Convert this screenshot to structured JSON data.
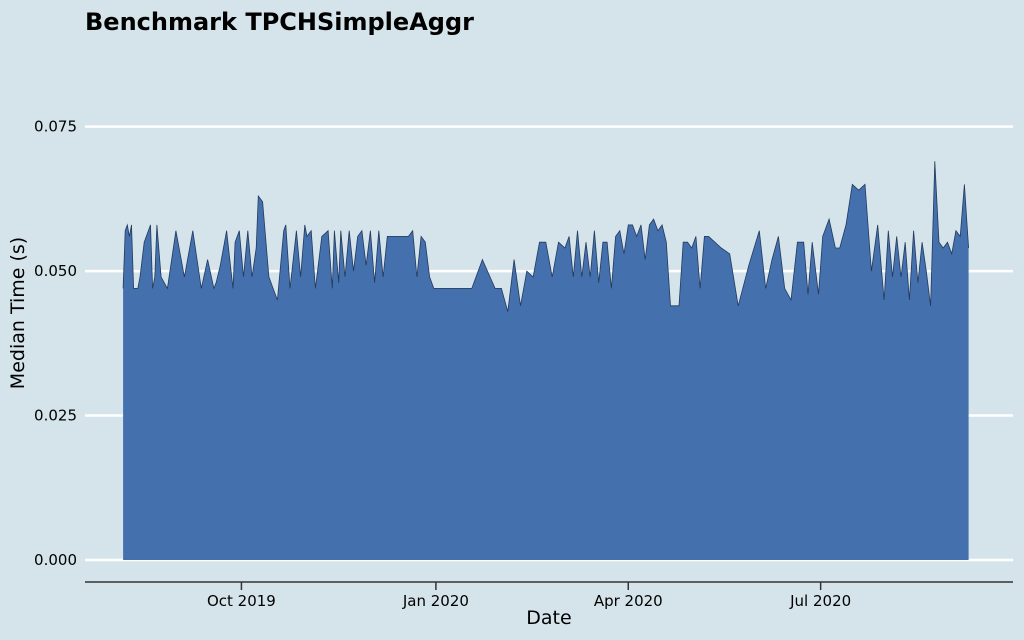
{
  "chart_data": {
    "type": "area",
    "title": "Benchmark TPCHSimpleAggr",
    "xlabel": "Date",
    "ylabel": "Median Time (s)",
    "xlim": [
      "2019-07-19",
      "2020-09-30"
    ],
    "ylim": [
      0,
      0.09
    ],
    "yticks": [
      0.0,
      0.025,
      0.05,
      0.075
    ],
    "ytick_labels": [
      "0.000",
      "0.025",
      "0.050",
      "0.075"
    ],
    "xticks": [
      "2019-10-01",
      "2020-01-01",
      "2020-04-01",
      "2020-07-01"
    ],
    "xtick_labels": [
      "Oct 2019",
      "Jan 2020",
      "Apr 2020",
      "Jul 2020"
    ],
    "grid": "horizontal",
    "legend": "none",
    "colors": {
      "background": "#d5e4eb",
      "fill": "#4470ad",
      "line": "#243a5c",
      "grid": "#ffffff",
      "axis": "#333333"
    },
    "series": [
      {
        "x": [
          "2019-08-06",
          "2019-08-07",
          "2019-08-08",
          "2019-08-09",
          "2019-08-10",
          "2019-08-11",
          "2019-08-12",
          "2019-08-13",
          "2019-08-14",
          "2019-08-16",
          "2019-08-19",
          "2019-08-20",
          "2019-08-21",
          "2019-08-22",
          "2019-08-24",
          "2019-08-27",
          "2019-08-31",
          "2019-09-04",
          "2019-09-08",
          "2019-09-12",
          "2019-09-15",
          "2019-09-18",
          "2019-09-19",
          "2019-09-21",
          "2019-09-24",
          "2019-09-27",
          "2019-09-28",
          "2019-09-30",
          "2019-10-02",
          "2019-10-04",
          "2019-10-06",
          "2019-10-08",
          "2019-10-09",
          "2019-10-11",
          "2019-10-14",
          "2019-10-16",
          "2019-10-18",
          "2019-10-21",
          "2019-10-22",
          "2019-10-24",
          "2019-10-27",
          "2019-10-29",
          "2019-10-31",
          "2019-11-01",
          "2019-11-03",
          "2019-11-05",
          "2019-11-08",
          "2019-11-11",
          "2019-11-13",
          "2019-11-14",
          "2019-11-16",
          "2019-11-17",
          "2019-11-19",
          "2019-11-21",
          "2019-11-23",
          "2019-11-25",
          "2019-11-27",
          "2019-11-29",
          "2019-12-01",
          "2019-12-03",
          "2019-12-05",
          "2019-12-07",
          "2019-12-09",
          "2019-12-11",
          "2019-12-13",
          "2019-12-15",
          "2019-12-17",
          "2019-12-19",
          "2019-12-21",
          "2019-12-23",
          "2019-12-25",
          "2019-12-27",
          "2019-12-29",
          "2019-12-31",
          "2020-01-02",
          "2020-01-04",
          "2020-01-06",
          "2020-01-08",
          "2020-01-10",
          "2020-01-13",
          "2020-01-18",
          "2020-01-23",
          "2020-01-29",
          "2020-02-01",
          "2020-02-04",
          "2020-02-07",
          "2020-02-10",
          "2020-02-13",
          "2020-02-16",
          "2020-02-19",
          "2020-02-22",
          "2020-02-25",
          "2020-02-28",
          "2020-03-02",
          "2020-03-04",
          "2020-03-06",
          "2020-03-08",
          "2020-03-10",
          "2020-03-12",
          "2020-03-14",
          "2020-03-16",
          "2020-03-18",
          "2020-03-20",
          "2020-03-22",
          "2020-03-24",
          "2020-03-26",
          "2020-03-28",
          "2020-03-30",
          "2020-04-01",
          "2020-04-03",
          "2020-04-05",
          "2020-04-07",
          "2020-04-09",
          "2020-04-11",
          "2020-04-13",
          "2020-04-15",
          "2020-04-17",
          "2020-04-19",
          "2020-04-21",
          "2020-04-23",
          "2020-04-25",
          "2020-04-27",
          "2020-04-29",
          "2020-05-01",
          "2020-05-03",
          "2020-05-05",
          "2020-05-07",
          "2020-05-09",
          "2020-05-12",
          "2020-05-15",
          "2020-05-19",
          "2020-05-23",
          "2020-05-28",
          "2020-06-02",
          "2020-06-05",
          "2020-06-08",
          "2020-06-11",
          "2020-06-14",
          "2020-06-17",
          "2020-06-20",
          "2020-06-23",
          "2020-06-25",
          "2020-06-27",
          "2020-06-30",
          "2020-07-02",
          "2020-07-05",
          "2020-07-08",
          "2020-07-10",
          "2020-07-13",
          "2020-07-16",
          "2020-07-19",
          "2020-07-22",
          "2020-07-25",
          "2020-07-28",
          "2020-07-31",
          "2020-08-02",
          "2020-08-04",
          "2020-08-06",
          "2020-08-08",
          "2020-08-10",
          "2020-08-12",
          "2020-08-14",
          "2020-08-16",
          "2020-08-18",
          "2020-08-20",
          "2020-08-22",
          "2020-08-24",
          "2020-08-26",
          "2020-08-28",
          "2020-08-30",
          "2020-09-01",
          "2020-09-03",
          "2020-09-05",
          "2020-09-07",
          "2020-09-09"
        ],
        "values": [
          0.047,
          0.057,
          0.058,
          0.056,
          0.058,
          0.047,
          0.047,
          0.047,
          0.049,
          0.055,
          0.058,
          0.047,
          0.049,
          0.058,
          0.049,
          0.047,
          0.057,
          0.049,
          0.057,
          0.047,
          0.052,
          0.047,
          0.048,
          0.051,
          0.057,
          0.047,
          0.055,
          0.057,
          0.049,
          0.057,
          0.049,
          0.054,
          0.063,
          0.062,
          0.049,
          0.047,
          0.045,
          0.057,
          0.058,
          0.047,
          0.057,
          0.049,
          0.058,
          0.056,
          0.057,
          0.047,
          0.056,
          0.057,
          0.047,
          0.057,
          0.048,
          0.057,
          0.049,
          0.057,
          0.05,
          0.056,
          0.057,
          0.051,
          0.057,
          0.048,
          0.057,
          0.049,
          0.056,
          0.056,
          0.056,
          0.056,
          0.056,
          0.056,
          0.057,
          0.049,
          0.056,
          0.055,
          0.049,
          0.047,
          0.047,
          0.047,
          0.047,
          0.047,
          0.047,
          0.047,
          0.047,
          0.052,
          0.047,
          0.047,
          0.043,
          0.052,
          0.044,
          0.05,
          0.049,
          0.055,
          0.055,
          0.049,
          0.055,
          0.054,
          0.056,
          0.049,
          0.057,
          0.049,
          0.055,
          0.049,
          0.057,
          0.048,
          0.055,
          0.055,
          0.047,
          0.056,
          0.057,
          0.053,
          0.058,
          0.058,
          0.056,
          0.058,
          0.052,
          0.058,
          0.059,
          0.057,
          0.058,
          0.055,
          0.044,
          0.044,
          0.044,
          0.055,
          0.055,
          0.054,
          0.056,
          0.047,
          0.056,
          0.056,
          0.055,
          0.054,
          0.053,
          0.044,
          0.051,
          0.057,
          0.047,
          0.052,
          0.056,
          0.047,
          0.045,
          0.055,
          0.055,
          0.046,
          0.055,
          0.046,
          0.056,
          0.059,
          0.054,
          0.054,
          0.058,
          0.065,
          0.064,
          0.065,
          0.05,
          0.058,
          0.045,
          0.057,
          0.049,
          0.056,
          0.049,
          0.055,
          0.045,
          0.057,
          0.048,
          0.055,
          0.05,
          0.044,
          0.069,
          0.055,
          0.054,
          0.055,
          0.053,
          0.057,
          0.056,
          0.065,
          0.054
        ]
      }
    ]
  }
}
